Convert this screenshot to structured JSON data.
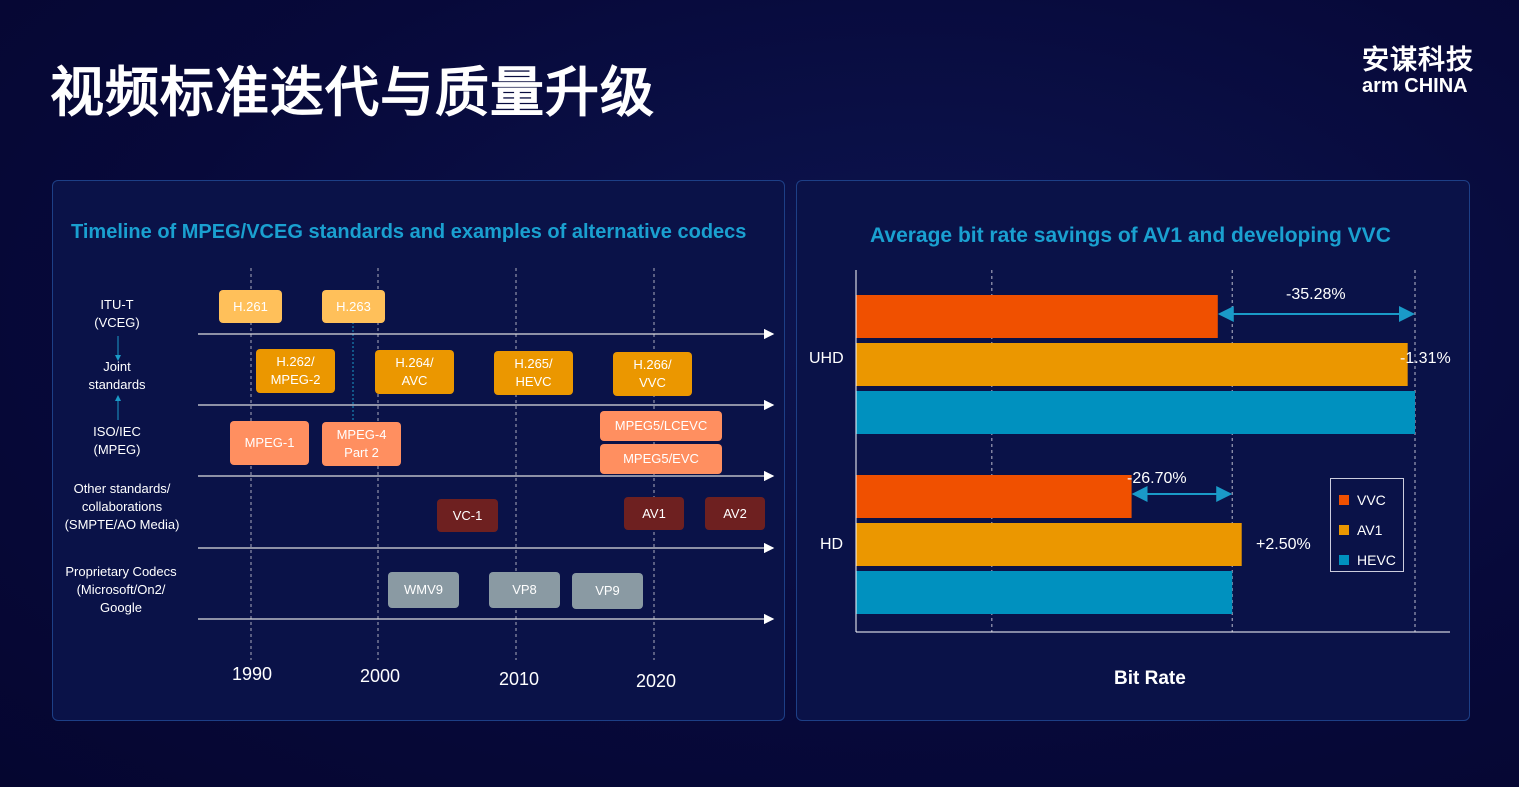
{
  "slide_title": "视频标准迭代与质量升级",
  "logo": {
    "cn": "安谋科技",
    "en": "arm CHINA"
  },
  "timeline": {
    "title": "Timeline of MPEG/VCEG standards and examples of alternative codecs",
    "rows": [
      "ITU-T\n(VCEG)",
      "Joint\nstandards",
      "ISO/IEC\n(MPEG)",
      "Other standards/\ncollaborations\n(SMPTE/AO Media)",
      "Proprietary Codecs\n(Microsoft/On2/\nGoogle"
    ],
    "years": [
      "1990",
      "2000",
      "2010",
      "2020"
    ],
    "itu": [
      "H.261",
      "H.263"
    ],
    "joint": [
      "H.262/\nMPEG-2",
      "H.264/\nAVC",
      "H.265/\nHEVC",
      "H.266/\nVVC"
    ],
    "mpeg": [
      "MPEG-1",
      "MPEG-4\nPart 2",
      "MPEG5/LCEVC",
      "MPEG5/EVC"
    ],
    "other": [
      "VC-1",
      "AV1",
      "AV2"
    ],
    "proprietary": [
      "WMV9",
      "VP8",
      "VP9"
    ],
    "colors": {
      "itu": "#ffc05a",
      "joint": "#eb9700",
      "mpeg": "#ff8f60",
      "other": "#6e2020",
      "proprietary": "#8a9aa3"
    }
  },
  "chart_data": {
    "type": "bar",
    "orientation": "horizontal",
    "title": "Average bit rate savings of AV1 and developing VVC",
    "xlabel": "Bit Rate",
    "ylabel": "",
    "categories": [
      "UHD",
      "HD"
    ],
    "series": [
      {
        "name": "VVC",
        "color": "#f05000",
        "values": [
          64.72,
          49.3
        ]
      },
      {
        "name": "AV1",
        "color": "#eb9700",
        "values": [
          98.69,
          69.0
        ]
      },
      {
        "name": "HEVC",
        "color": "#0091bf",
        "values": [
          100,
          67.3
        ]
      }
    ],
    "annotations": {
      "uhd_vvc": "-35.28%",
      "uhd_av1": "-1.31%",
      "hd_vvc": "-26.70%",
      "hd_av1": "+2.50%"
    },
    "xlim": [
      0,
      106
    ],
    "gridlines": [
      24.3,
      67.3,
      100
    ],
    "grid": true,
    "legend": "right"
  }
}
